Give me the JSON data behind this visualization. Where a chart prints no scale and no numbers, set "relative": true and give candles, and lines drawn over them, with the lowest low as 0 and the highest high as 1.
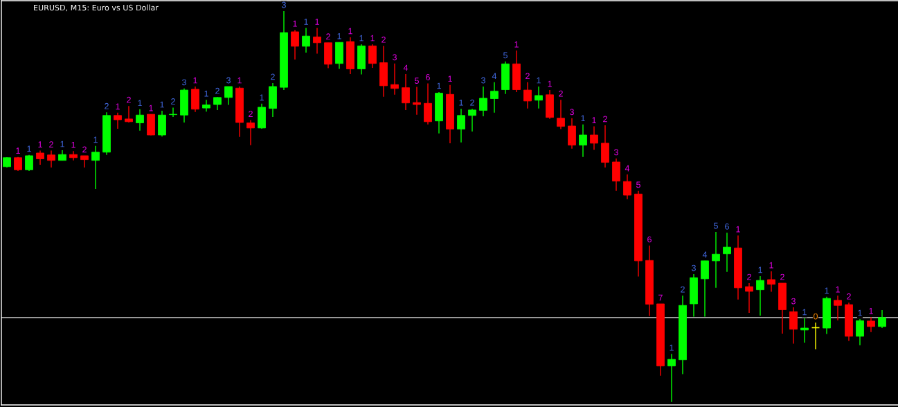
{
  "chart_data": {
    "type": "candlestick",
    "title": "EURUSD, M15: Euro vs US Dollar",
    "relative": true,
    "categories": [
      null,
      null,
      null,
      null,
      null,
      null,
      null,
      null,
      null,
      null,
      null,
      null,
      null,
      null,
      null,
      null,
      null,
      null,
      null,
      null,
      null,
      null,
      null,
      null,
      null,
      null,
      null,
      null,
      null,
      null,
      null,
      null,
      null,
      null,
      null,
      null,
      null,
      null,
      null,
      null,
      null,
      null,
      null,
      null,
      null,
      null,
      null,
      null,
      null,
      null,
      null,
      null,
      null,
      null,
      null,
      null,
      null,
      null,
      null,
      null,
      null,
      null,
      null,
      null,
      null,
      null,
      null,
      null,
      null,
      null,
      null,
      null,
      null,
      null,
      null,
      null,
      null,
      null,
      null,
      null
    ],
    "ohlc": [
      [
        0.602,
        0.626,
        0.6,
        0.625
      ],
      [
        0.625,
        0.627,
        0.591,
        0.594
      ],
      [
        0.594,
        0.632,
        0.591,
        0.63
      ],
      [
        0.637,
        0.643,
        0.607,
        0.622
      ],
      [
        0.632,
        0.643,
        0.6,
        0.618
      ],
      [
        0.618,
        0.644,
        0.618,
        0.633
      ],
      [
        0.633,
        0.642,
        0.618,
        0.625
      ],
      [
        0.63,
        0.63,
        0.6,
        0.62
      ],
      [
        0.618,
        0.655,
        0.545,
        0.639
      ],
      [
        0.639,
        0.741,
        0.632,
        0.733
      ],
      [
        0.733,
        0.74,
        0.699,
        0.722
      ],
      [
        0.724,
        0.757,
        0.715,
        0.717
      ],
      [
        0.714,
        0.749,
        0.694,
        0.734
      ],
      [
        0.736,
        0.736,
        0.682,
        0.683
      ],
      [
        0.683,
        0.745,
        0.679,
        0.734
      ],
      [
        0.735,
        0.753,
        0.729,
        0.736
      ],
      [
        0.734,
        0.802,
        0.715,
        0.798
      ],
      [
        0.8,
        0.807,
        0.742,
        0.749
      ],
      [
        0.752,
        0.773,
        0.743,
        0.76
      ],
      [
        0.761,
        0.78,
        0.747,
        0.779
      ],
      [
        0.779,
        0.807,
        0.76,
        0.807
      ],
      [
        0.803,
        0.807,
        0.678,
        0.715
      ],
      [
        0.714,
        0.721,
        0.657,
        0.701
      ],
      [
        0.701,
        0.763,
        0.699,
        0.754
      ],
      [
        0.751,
        0.816,
        0.729,
        0.807
      ],
      [
        0.805,
        1,
        0.798,
        0.945
      ],
      [
        0.947,
        0.952,
        0.876,
        0.91
      ],
      [
        0.91,
        0.957,
        0.894,
        0.936
      ],
      [
        0.934,
        0.957,
        0.891,
        0.919
      ],
      [
        0.919,
        0.919,
        0.854,
        0.864
      ],
      [
        0.866,
        0.92,
        0.852,
        0.92
      ],
      [
        0.922,
        0.933,
        0.839,
        0.852
      ],
      [
        0.852,
        0.915,
        0.838,
        0.911
      ],
      [
        0.911,
        0.915,
        0.855,
        0.866
      ],
      [
        0.868,
        0.911,
        0.781,
        0.809
      ],
      [
        0.812,
        0.866,
        0.786,
        0.802
      ],
      [
        0.804,
        0.839,
        0.747,
        0.765
      ],
      [
        0.766,
        0.806,
        0.735,
        0.761
      ],
      [
        0.764,
        0.815,
        0.71,
        0.717
      ],
      [
        0.719,
        0.793,
        0.687,
        0.79
      ],
      [
        0.787,
        0.811,
        0.662,
        0.698
      ],
      [
        0.698,
        0.75,
        0.664,
        0.733
      ],
      [
        0.733,
        0.75,
        0.692,
        0.747
      ],
      [
        0.746,
        0.807,
        0.731,
        0.777
      ],
      [
        0.776,
        0.818,
        0.74,
        0.795
      ],
      [
        0.799,
        0.871,
        0.788,
        0.865
      ],
      [
        0.865,
        0.899,
        0.793,
        0.799
      ],
      [
        0.798,
        0.818,
        0.751,
        0.77
      ],
      [
        0.772,
        0.807,
        0.751,
        0.784
      ],
      [
        0.786,
        0.798,
        0.724,
        0.728
      ],
      [
        0.726,
        0.773,
        0.698,
        0.705
      ],
      [
        0.706,
        0.726,
        0.648,
        0.657
      ],
      [
        0.657,
        0.71,
        0.627,
        0.683
      ],
      [
        0.683,
        0.705,
        0.645,
        0.662
      ],
      [
        0.662,
        0.708,
        0.6,
        0.613
      ],
      [
        0.614,
        0.623,
        0.54,
        0.565
      ],
      [
        0.564,
        0.582,
        0.519,
        0.529
      ],
      [
        0.532,
        0.54,
        0.321,
        0.361
      ],
      [
        0.362,
        0.4,
        0.22,
        0.25
      ],
      [
        0.251,
        0.251,
        0.067,
        0.092
      ],
      [
        0.092,
        0.123,
        0,
        0.109
      ],
      [
        0.108,
        0.272,
        0.071,
        0.247
      ],
      [
        0.251,
        0.327,
        0.218,
        0.318
      ],
      [
        0.315,
        0.361,
        0.218,
        0.361
      ],
      [
        0.361,
        0.435,
        0.292,
        0.378
      ],
      [
        0.379,
        0.433,
        0.333,
        0.396
      ],
      [
        0.394,
        0.426,
        0.262,
        0.292
      ],
      [
        0.295,
        0.304,
        0.228,
        0.283
      ],
      [
        0.287,
        0.322,
        0.221,
        0.311
      ],
      [
        0.313,
        0.334,
        0.282,
        0.301
      ],
      [
        0.304,
        0.304,
        0.175,
        0.236
      ],
      [
        0.231,
        0.242,
        0.149,
        0.186
      ],
      [
        0.184,
        0.214,
        0.152,
        0.189
      ],
      [
        0.19,
        0.203,
        0.135,
        0.19
      ],
      [
        0.189,
        0.269,
        0.174,
        0.265
      ],
      [
        0.26,
        0.272,
        0.209,
        0.247
      ],
      [
        0.249,
        0.254,
        0.156,
        0.168
      ],
      [
        0.168,
        0.212,
        0.145,
        0.208
      ],
      [
        0.207,
        0.217,
        0.179,
        0.193
      ],
      [
        0.193,
        0.235,
        0.189,
        0.216
      ]
    ],
    "colors": [
      "#00ff00",
      "#ff0000",
      "#00ff00",
      "#ff0000",
      "#ff0000",
      "#00ff00",
      "#ff0000",
      "#ff0000",
      "#00ff00",
      "#00ff00",
      "#ff0000",
      "#ff0000",
      "#00ff00",
      "#ff0000",
      "#00ff00",
      "#00ff00",
      "#00ff00",
      "#ff0000",
      "#00ff00",
      "#00ff00",
      "#00ff00",
      "#ff0000",
      "#ff0000",
      "#00ff00",
      "#00ff00",
      "#00ff00",
      "#ff0000",
      "#00ff00",
      "#ff0000",
      "#ff0000",
      "#00ff00",
      "#ff0000",
      "#00ff00",
      "#ff0000",
      "#ff0000",
      "#ff0000",
      "#ff0000",
      "#ff0000",
      "#ff0000",
      "#00ff00",
      "#ff0000",
      "#00ff00",
      "#00ff00",
      "#00ff00",
      "#00ff00",
      "#00ff00",
      "#ff0000",
      "#ff0000",
      "#00ff00",
      "#ff0000",
      "#ff0000",
      "#ff0000",
      "#00ff00",
      "#ff0000",
      "#ff0000",
      "#ff0000",
      "#ff0000",
      "#ff0000",
      "#ff0000",
      "#ff0000",
      "#00ff00",
      "#00ff00",
      "#00ff00",
      "#00ff00",
      "#00ff00",
      "#00ff00",
      "#ff0000",
      "#ff0000",
      "#00ff00",
      "#ff0000",
      "#ff0000",
      "#ff0000",
      "#00ff00",
      "#ffff00",
      "#00ff00",
      "#ff0000",
      "#ff0000",
      "#00ff00",
      "#ff0000",
      "#00ff00"
    ],
    "value_labels": [
      null,
      "1",
      "1",
      "1",
      "2",
      "1",
      "1",
      "2",
      "1",
      "2",
      "1",
      "2",
      "1",
      "1",
      "1",
      "2",
      "3",
      "1",
      "1",
      "2",
      "3",
      "1",
      "2",
      "1",
      "2",
      "3",
      "1",
      "1",
      "1",
      "2",
      "1",
      "1",
      "1",
      "1",
      "2",
      "3",
      "4",
      "5",
      "6",
      "1",
      "1",
      "1",
      "2",
      "3",
      "4",
      "5",
      "1",
      "2",
      "1",
      "1",
      "2",
      "3",
      "1",
      "1",
      "2",
      "3",
      "4",
      "5",
      "6",
      "7",
      "1",
      "2",
      "3",
      "4",
      "5",
      "6",
      "1",
      "2",
      "1",
      "1",
      "2",
      "3",
      "1",
      "0",
      "1",
      "1",
      "2",
      "1",
      "1",
      null
    ],
    "ref_lines": [
      {
        "axis": "y",
        "value": 0.216,
        "color": "#a9a9a9"
      }
    ]
  }
}
